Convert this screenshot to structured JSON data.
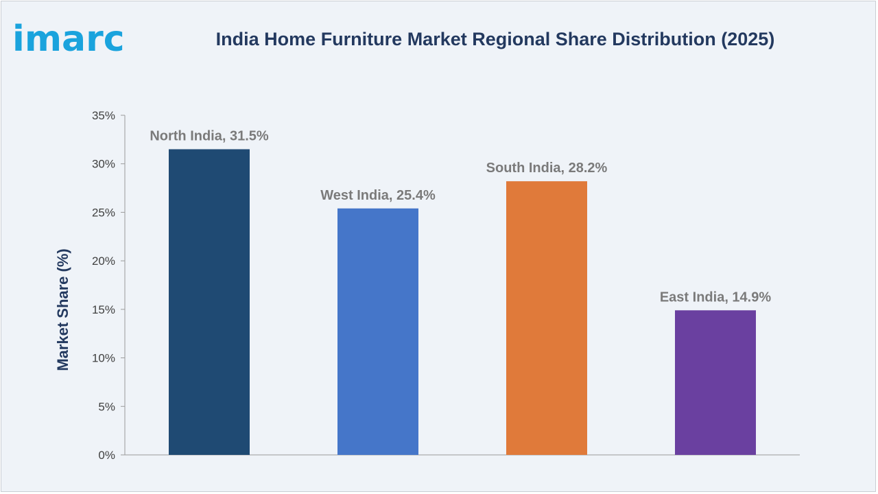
{
  "brand": {
    "logo_text": "imarc",
    "logo_color": "#1aa3dd"
  },
  "chart_data": {
    "type": "bar",
    "title": "India Home Furniture Market Regional Share Distribution (2025)",
    "xlabel": "",
    "ylabel": "Market Share (%)",
    "categories": [
      "North India",
      "West India",
      "South India",
      "East India"
    ],
    "values": [
      31.5,
      25.4,
      28.2,
      14.9
    ],
    "data_labels": [
      "North India, 31.5%",
      "West India, 25.4%",
      "South India, 28.2%",
      "East India, 14.9%"
    ],
    "colors": [
      "#1f4a73",
      "#4576c9",
      "#e07a3a",
      "#6a40a0"
    ],
    "ylim": [
      0,
      35
    ],
    "yticks": [
      "0%",
      "5%",
      "10%",
      "15%",
      "20%",
      "25%",
      "30%",
      "35%"
    ],
    "grid": false,
    "legend": "none"
  }
}
